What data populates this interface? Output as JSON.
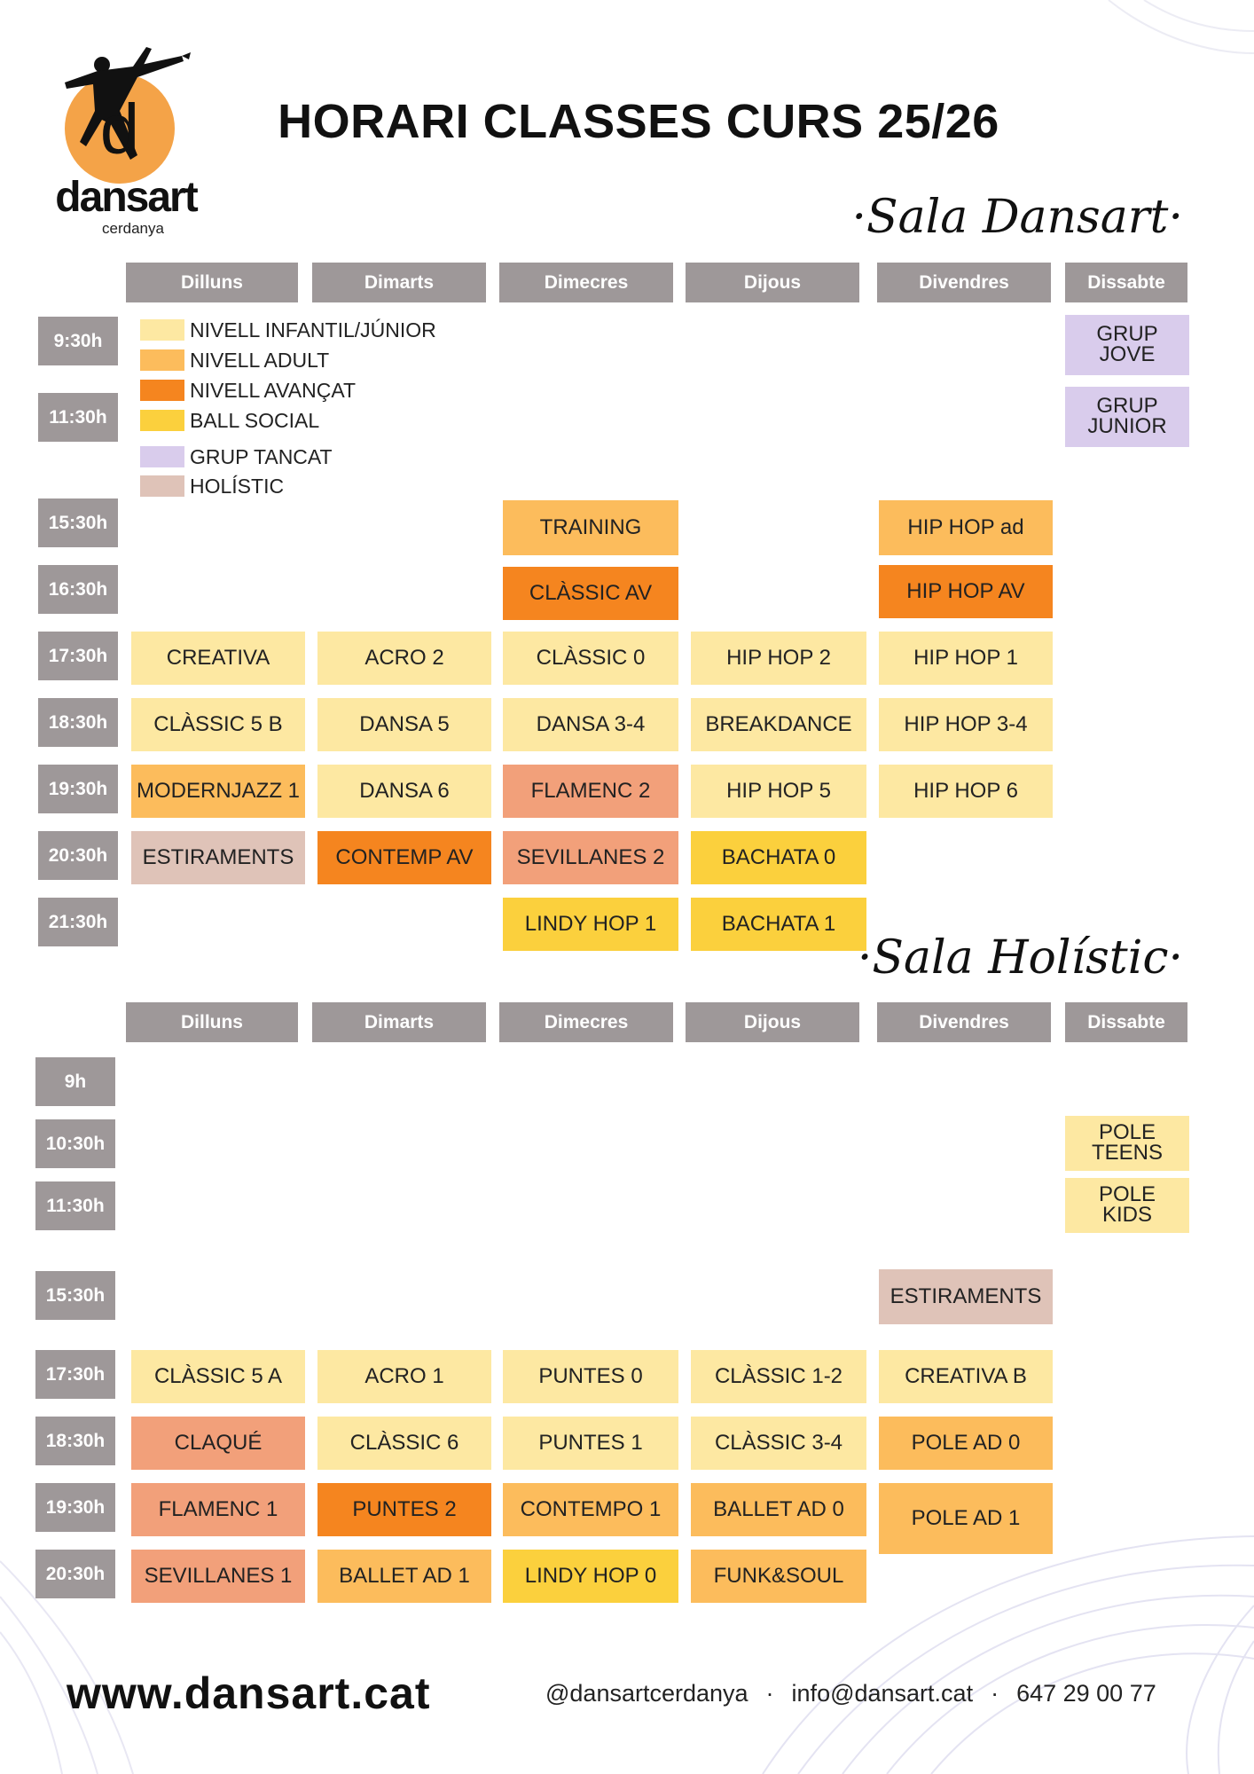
{
  "title": "HORARI CLASSES CURS 25/26",
  "logo": {
    "wordmark": "dansart",
    "subtitle": "cerdanya",
    "letter": "d"
  },
  "colors": {
    "infantil": "#fde8a2",
    "adult": "#fcbc5c",
    "avancat": "#f5851f",
    "ball_social": "#fbd03d",
    "grup_tancat": "#d9ccec",
    "holistic": "#dfc3b8",
    "flamenc": "#f2a07a",
    "header_gray": "#9e9899",
    "logo_orange": "#f4a348"
  },
  "legend": [
    {
      "label": "NIVELL INFANTIL/JÚNIOR",
      "color": "#fde8a2"
    },
    {
      "label": "NIVELL ADULT",
      "color": "#fcbc5c"
    },
    {
      "label": "NIVELL AVANÇAT",
      "color": "#f5851f"
    },
    {
      "label": "BALL SOCIAL",
      "color": "#fbd03d"
    },
    {
      "label": "GRUP TANCAT",
      "color": "#d9ccec"
    },
    {
      "label": "HOLÍSTIC",
      "color": "#dfc3b8"
    }
  ],
  "days": [
    "Dilluns",
    "Dimarts",
    "Dimecres",
    "Dijous",
    "Divendres",
    "Dissabte"
  ],
  "sala_dansart": {
    "name": "·Sala Dansart·",
    "times": [
      "9:30h",
      "11:30h",
      "15:30h",
      "16:30h",
      "17:30h",
      "18:30h",
      "19:30h",
      "20:30h",
      "21:30h"
    ],
    "classes": [
      {
        "label": "GRUP JOVE",
        "day": "Dissabte",
        "time": "9:30h",
        "color": "#d9ccec"
      },
      {
        "label": "GRUP JUNIOR",
        "day": "Dissabte",
        "time": "11:30h",
        "color": "#d9ccec"
      },
      {
        "label": "TRAINING",
        "day": "Dimecres",
        "time": "15:30h",
        "color": "#fcbc5c"
      },
      {
        "label": "HIP HOP ad",
        "day": "Divendres",
        "time": "15:30h",
        "color": "#fcbc5c"
      },
      {
        "label": "CLÀSSIC AV",
        "day": "Dimecres",
        "time": "16:30h",
        "color": "#f5851f"
      },
      {
        "label": "HIP HOP AV",
        "day": "Divendres",
        "time": "16:30h",
        "color": "#f5851f"
      },
      {
        "label": "CREATIVA",
        "day": "Dilluns",
        "time": "17:30h",
        "color": "#fde8a2"
      },
      {
        "label": "ACRO 2",
        "day": "Dimarts",
        "time": "17:30h",
        "color": "#fde8a2"
      },
      {
        "label": "CLÀSSIC 0",
        "day": "Dimecres",
        "time": "17:30h",
        "color": "#fde8a2"
      },
      {
        "label": "HIP HOP 2",
        "day": "Dijous",
        "time": "17:30h",
        "color": "#fde8a2"
      },
      {
        "label": "HIP HOP 1",
        "day": "Divendres",
        "time": "17:30h",
        "color": "#fde8a2"
      },
      {
        "label": "CLÀSSIC 5 B",
        "day": "Dilluns",
        "time": "18:30h",
        "color": "#fde8a2"
      },
      {
        "label": "DANSA 5",
        "day": "Dimarts",
        "time": "18:30h",
        "color": "#fde8a2"
      },
      {
        "label": "DANSA 3-4",
        "day": "Dimecres",
        "time": "18:30h",
        "color": "#fde8a2"
      },
      {
        "label": "BREAKDANCE",
        "day": "Dijous",
        "time": "18:30h",
        "color": "#fde8a2"
      },
      {
        "label": "HIP HOP 3-4",
        "day": "Divendres",
        "time": "18:30h",
        "color": "#fde8a2"
      },
      {
        "label": "MODERNJAZZ 1",
        "day": "Dilluns",
        "time": "19:30h",
        "color": "#fcbc5c"
      },
      {
        "label": "DANSA 6",
        "day": "Dimarts",
        "time": "19:30h",
        "color": "#fde8a2"
      },
      {
        "label": "FLAMENC 2",
        "day": "Dimecres",
        "time": "19:30h",
        "color": "#f2a07a"
      },
      {
        "label": "HIP HOP 5",
        "day": "Dijous",
        "time": "19:30h",
        "color": "#fde8a2"
      },
      {
        "label": "HIP HOP 6",
        "day": "Divendres",
        "time": "19:30h",
        "color": "#fde8a2"
      },
      {
        "label": "ESTIRAMENTS",
        "day": "Dilluns",
        "time": "20:30h",
        "color": "#dfc3b8"
      },
      {
        "label": "CONTEMP AV",
        "day": "Dimarts",
        "time": "20:30h",
        "color": "#f5851f"
      },
      {
        "label": "SEVILLANES 2",
        "day": "Dimecres",
        "time": "20:30h",
        "color": "#f2a07a"
      },
      {
        "label": "BACHATA 0",
        "day": "Dijous",
        "time": "20:30h",
        "color": "#fbd03d"
      },
      {
        "label": "LINDY HOP 1",
        "day": "Dimecres",
        "time": "21:30h",
        "color": "#fbd03d"
      },
      {
        "label": "BACHATA 1",
        "day": "Dijous",
        "time": "21:30h",
        "color": "#fbd03d"
      }
    ]
  },
  "sala_holistic": {
    "name": "·Sala Holístic·",
    "times": [
      "9h",
      "10:30h",
      "11:30h",
      "15:30h",
      "17:30h",
      "18:30h",
      "19:30h",
      "20:30h"
    ],
    "classes": [
      {
        "label": "POLE TEENS",
        "day": "Dissabte",
        "time": "10:30h",
        "color": "#fde8a2"
      },
      {
        "label": "POLE KIDS",
        "day": "Dissabte",
        "time": "11:30h",
        "color": "#fde8a2"
      },
      {
        "label": "ESTIRAMENTS",
        "day": "Divendres",
        "time": "15:30h",
        "color": "#dfc3b8"
      },
      {
        "label": "CLÀSSIC 5 A",
        "day": "Dilluns",
        "time": "17:30h",
        "color": "#fde8a2"
      },
      {
        "label": "ACRO 1",
        "day": "Dimarts",
        "time": "17:30h",
        "color": "#fde8a2"
      },
      {
        "label": "PUNTES 0",
        "day": "Dimecres",
        "time": "17:30h",
        "color": "#fde8a2"
      },
      {
        "label": "CLÀSSIC 1-2",
        "day": "Dijous",
        "time": "17:30h",
        "color": "#fde8a2"
      },
      {
        "label": "CREATIVA B",
        "day": "Divendres",
        "time": "17:30h",
        "color": "#fde8a2"
      },
      {
        "label": "CLAQUÉ",
        "day": "Dilluns",
        "time": "18:30h",
        "color": "#f2a07a"
      },
      {
        "label": "CLÀSSIC 6",
        "day": "Dimarts",
        "time": "18:30h",
        "color": "#fde8a2"
      },
      {
        "label": "PUNTES 1",
        "day": "Dimecres",
        "time": "18:30h",
        "color": "#fde8a2"
      },
      {
        "label": "CLÀSSIC 3-4",
        "day": "Dijous",
        "time": "18:30h",
        "color": "#fde8a2"
      },
      {
        "label": "POLE AD 0",
        "day": "Divendres",
        "time": "18:30h",
        "color": "#fcbc5c"
      },
      {
        "label": "FLAMENC 1",
        "day": "Dilluns",
        "time": "19:30h",
        "color": "#f2a07a"
      },
      {
        "label": "PUNTES 2",
        "day": "Dimarts",
        "time": "19:30h",
        "color": "#f5851f"
      },
      {
        "label": "CONTEMPO 1",
        "day": "Dimecres",
        "time": "19:30h",
        "color": "#fcbc5c"
      },
      {
        "label": "BALLET AD 0",
        "day": "Dijous",
        "time": "19:30h",
        "color": "#fcbc5c"
      },
      {
        "label": "POLE AD 1",
        "day": "Divendres",
        "time": "19:30h",
        "color": "#fcbc5c"
      },
      {
        "label": "SEVILLANES 1",
        "day": "Dilluns",
        "time": "20:30h",
        "color": "#f2a07a"
      },
      {
        "label": "BALLET AD 1",
        "day": "Dimarts",
        "time": "20:30h",
        "color": "#fcbc5c"
      },
      {
        "label": "LINDY HOP 0",
        "day": "Dimecres",
        "time": "20:30h",
        "color": "#fbd03d"
      },
      {
        "label": "FUNK&SOUL",
        "day": "Dijous",
        "time": "20:30h",
        "color": "#fcbc5c"
      }
    ]
  },
  "footer": {
    "website": "www.dansart.cat",
    "instagram": "@dansartcerdanya",
    "email": "info@dansart.cat",
    "phone": "647 29 00 77",
    "separator": "·"
  }
}
